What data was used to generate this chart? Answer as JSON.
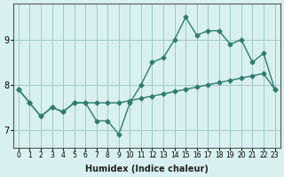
{
  "xlabel": "Humidex (Indice chaleur)",
  "ylabel": "",
  "x_values": [
    0,
    1,
    2,
    3,
    4,
    5,
    6,
    7,
    8,
    9,
    10,
    11,
    12,
    13,
    14,
    15,
    16,
    17,
    18,
    19,
    20,
    21,
    22,
    23
  ],
  "line1_y": [
    7.9,
    7.6,
    7.3,
    7.5,
    7.4,
    7.6,
    7.6,
    7.2,
    7.2,
    6.9,
    7.6,
    8.0,
    8.5,
    8.6,
    9.0,
    9.5,
    9.1,
    9.2,
    9.2,
    8.9,
    9.0,
    8.5,
    8.7,
    7.9
  ],
  "line2_y": [
    7.9,
    7.6,
    7.3,
    7.5,
    7.4,
    7.6,
    7.6,
    7.6,
    7.6,
    7.6,
    7.65,
    7.7,
    7.75,
    7.8,
    7.85,
    7.9,
    7.95,
    8.0,
    8.05,
    8.1,
    8.15,
    8.2,
    8.25,
    7.9
  ],
  "line_color": "#2e7d6e",
  "bg_color": "#d8f0f0",
  "grid_color": "#a0c8c8",
  "ylim": [
    6.6,
    9.8
  ],
  "yticks": [
    7,
    8,
    9
  ],
  "xtick_labels": [
    "0",
    "1",
    "2",
    "3",
    "4",
    "5",
    "6",
    "7",
    "8",
    "9",
    "10",
    "11",
    "12",
    "13",
    "14",
    "15",
    "16",
    "17",
    "18",
    "19",
    "20",
    "21",
    "22",
    "23"
  ]
}
